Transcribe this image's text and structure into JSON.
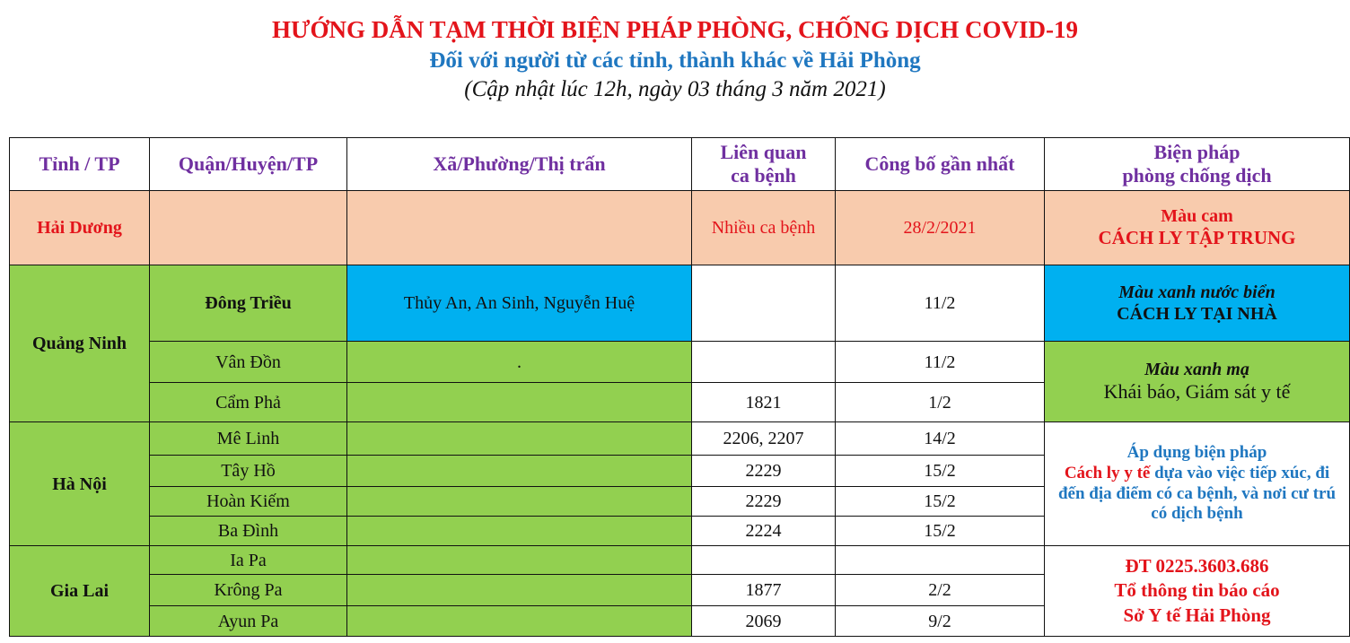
{
  "header": {
    "title": "HƯỚNG DẪN TẠM THỜI BIỆN PHÁP PHÒNG, CHỐNG DỊCH COVID-19",
    "subtitle": "Đối với người từ các tỉnh, thành khác về Hải Phòng",
    "updated": "(Cập nhật lúc 12h, ngày 03 tháng 3 năm 2021)"
  },
  "table": {
    "columns": [
      "Tỉnh / TP",
      "Quận/Huyện/TP",
      "Xã/Phường/Thị trấn",
      "Liên quan ca bệnh",
      "Công bố gần nhất",
      "Biện pháp phòng chống dịch"
    ],
    "col3_l1": "Liên quan",
    "col3_l2": "ca bệnh",
    "col5_l1": "Biện pháp",
    "col5_l2": "phòng chống dịch",
    "hai_duong": {
      "province": "Hải Dương",
      "cases": "Nhiều ca bệnh",
      "date": "28/2/2021",
      "measure_color": "Màu cam",
      "measure": "CÁCH LY TẬP TRUNG"
    },
    "quang_ninh": {
      "province": "Quảng Ninh",
      "rows": [
        {
          "district": "Đông Triều",
          "ward": "Thủy An, An Sinh, Nguyễn Huệ",
          "cases": "",
          "date": "11/2"
        },
        {
          "district": "Vân Đồn",
          "ward": ".",
          "cases": "",
          "date": "11/2"
        },
        {
          "district": "Cẩm Phả",
          "ward": "",
          "cases": "1821",
          "date": "1/2"
        }
      ],
      "measure1_color": "Màu xanh nước biển",
      "measure1": "CÁCH LY TẠI NHÀ",
      "measure2_color": "Màu xanh mạ",
      "measure2": "Khái báo, Giám sát y tế"
    },
    "ha_noi": {
      "province": "Hà Nội",
      "rows": [
        {
          "district": "Mê Linh",
          "cases": "2206, 2207",
          "date": "14/2"
        },
        {
          "district": "Tây Hồ",
          "cases": "2229",
          "date": "15/2"
        },
        {
          "district": "Hoàn Kiếm",
          "cases": "2229",
          "date": "15/2"
        },
        {
          "district": "Ba Đình",
          "cases": "2224",
          "date": "15/2"
        }
      ],
      "measure_a": "Áp dụng biện pháp",
      "measure_b": "Cách ly y tế",
      "measure_c": " dựa vào việc tiếp xúc, đi đến địa điểm có ca bệnh, và nơi cư trú có dịch bệnh"
    },
    "gia_lai": {
      "province": "Gia Lai",
      "rows": [
        {
          "district": "Ia Pa",
          "cases": "",
          "date": ""
        },
        {
          "district": "Krông Pa",
          "cases": "1877",
          "date": "2/2"
        },
        {
          "district": "Ayun Pa",
          "cases": "2069",
          "date": "9/2"
        }
      ],
      "contact1": "ĐT 0225.3603.686",
      "contact2": "Tổ thông tin báo cáo",
      "contact3": "Sở Y tế Hải Phòng"
    }
  },
  "colors": {
    "orange": "#f8cbad",
    "green": "#92d050",
    "blue": "#00b0f0",
    "header_text": "#7030a0",
    "red": "#e3141b"
  }
}
